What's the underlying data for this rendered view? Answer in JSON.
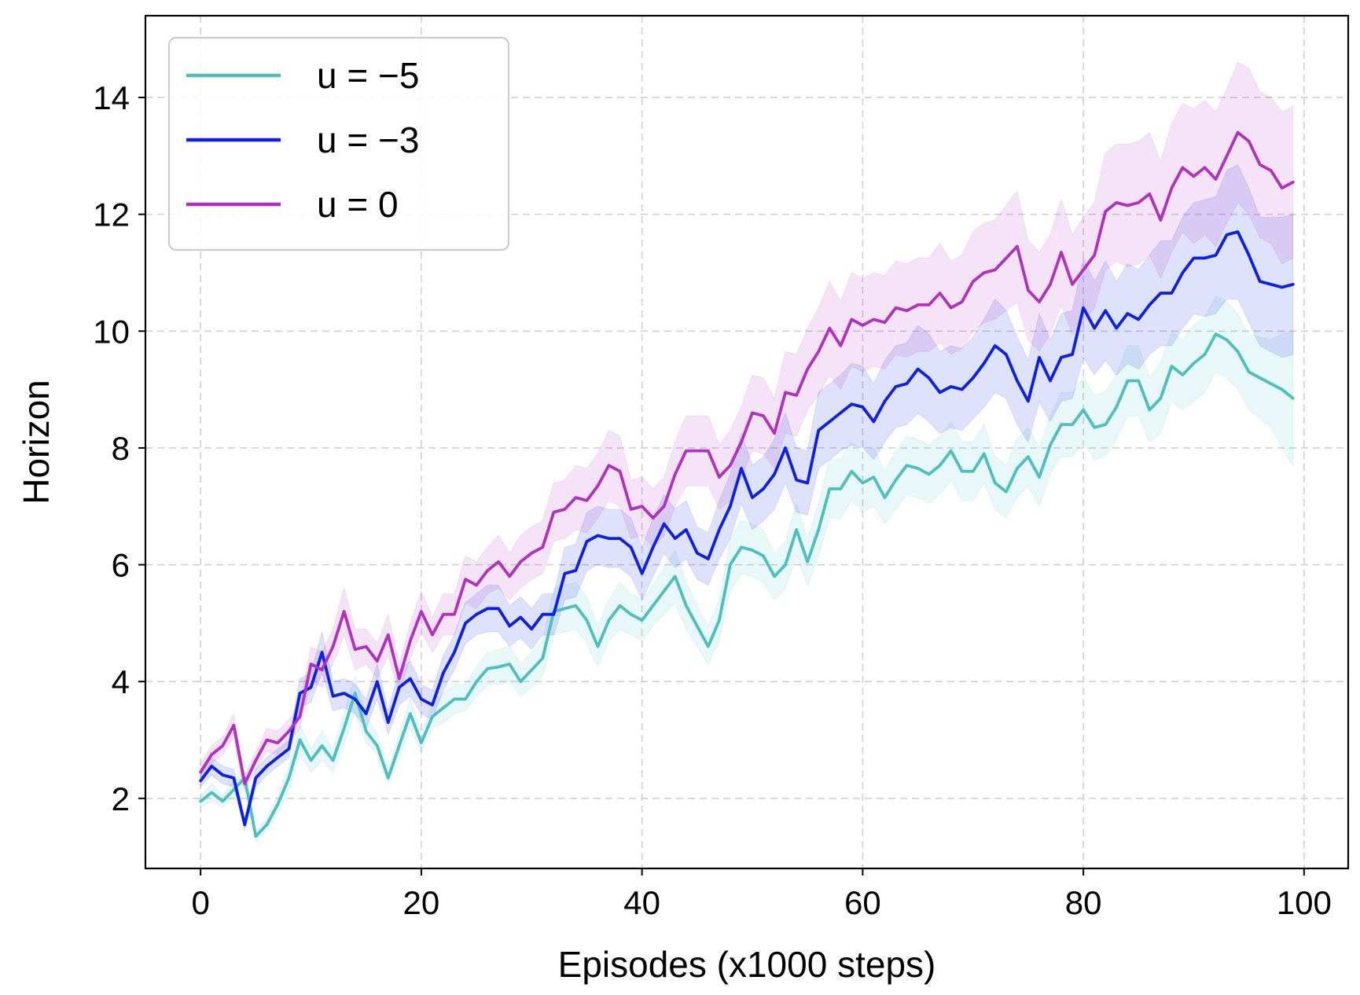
{
  "chart_data": {
    "type": "line",
    "title": "",
    "xlabel": "Episodes (x1000 steps)",
    "ylabel": "Horizon",
    "xlim": [
      -5,
      104
    ],
    "ylim": [
      0.8,
      15.4
    ],
    "xticks": [
      0,
      20,
      40,
      60,
      80,
      100
    ],
    "yticks": [
      2,
      4,
      6,
      8,
      10,
      12,
      14
    ],
    "grid": true,
    "legend_position": "top-left",
    "x": [
      0,
      1,
      2,
      3,
      4,
      5,
      6,
      7,
      8,
      9,
      10,
      11,
      12,
      13,
      14,
      15,
      16,
      17,
      18,
      19,
      20,
      21,
      22,
      23,
      24,
      25,
      26,
      27,
      28,
      29,
      30,
      31,
      32,
      33,
      34,
      35,
      36,
      37,
      38,
      39,
      40,
      41,
      42,
      43,
      44,
      45,
      46,
      47,
      48,
      49,
      50,
      51,
      52,
      53,
      54,
      55,
      56,
      57,
      58,
      59,
      60,
      61,
      62,
      63,
      64,
      65,
      66,
      67,
      68,
      69,
      70,
      71,
      72,
      73,
      74,
      75,
      76,
      77,
      78,
      79,
      80,
      81,
      82,
      83,
      84,
      85,
      86,
      87,
      88,
      89,
      90,
      91,
      92,
      93,
      94,
      95,
      96,
      97,
      98,
      99
    ],
    "series": [
      {
        "name": "u = −5",
        "color": "#4dbfbf",
        "values": [
          1.95,
          2.1,
          1.95,
          2.15,
          2.35,
          1.35,
          1.55,
          1.9,
          2.35,
          3.0,
          2.65,
          2.9,
          2.65,
          3.2,
          3.8,
          3.15,
          2.9,
          2.35,
          2.9,
          3.45,
          2.95,
          3.4,
          3.55,
          3.7,
          3.7,
          4.0,
          4.22,
          4.25,
          4.3,
          4.0,
          4.2,
          4.4,
          5.2,
          5.25,
          5.3,
          5.05,
          4.6,
          5.05,
          5.3,
          5.15,
          5.05,
          5.3,
          5.55,
          5.8,
          5.3,
          4.95,
          4.6,
          5.05,
          6.0,
          6.3,
          6.25,
          6.15,
          5.8,
          6.0,
          6.6,
          6.05,
          6.6,
          7.3,
          7.3,
          7.6,
          7.4,
          7.5,
          7.15,
          7.45,
          7.7,
          7.65,
          7.55,
          7.7,
          7.95,
          7.6,
          7.6,
          7.9,
          7.4,
          7.25,
          7.65,
          7.85,
          7.5,
          8.05,
          8.4,
          8.4,
          8.65,
          8.35,
          8.4,
          8.7,
          9.15,
          9.15,
          8.65,
          8.85,
          9.4,
          9.25,
          9.45,
          9.6,
          9.95,
          9.85,
          9.65,
          9.3,
          9.2,
          9.1,
          9.0,
          8.85
        ],
        "band_lower": [
          1.85,
          1.95,
          1.85,
          2.0,
          2.2,
          1.25,
          1.45,
          1.75,
          2.15,
          2.75,
          2.45,
          2.65,
          2.45,
          2.95,
          3.45,
          2.95,
          2.75,
          2.25,
          2.7,
          3.2,
          2.8,
          3.2,
          3.3,
          3.45,
          3.5,
          3.75,
          3.95,
          3.95,
          4.0,
          3.75,
          3.9,
          4.1,
          4.8,
          4.85,
          4.9,
          4.65,
          4.25,
          4.7,
          4.9,
          4.8,
          4.7,
          4.95,
          5.15,
          5.35,
          4.9,
          4.6,
          4.3,
          4.7,
          5.55,
          5.85,
          5.8,
          5.7,
          5.4,
          5.6,
          6.15,
          5.65,
          6.15,
          6.8,
          6.8,
          7.1,
          6.9,
          7.0,
          6.7,
          6.95,
          7.2,
          7.15,
          7.05,
          7.2,
          7.45,
          7.1,
          7.1,
          7.4,
          6.95,
          6.8,
          7.15,
          7.35,
          7.0,
          7.55,
          7.85,
          7.85,
          8.1,
          7.8,
          7.85,
          8.15,
          8.55,
          8.55,
          8.1,
          8.25,
          8.8,
          8.65,
          8.8,
          8.95,
          9.3,
          9.2,
          9.0,
          8.65,
          8.5,
          8.35,
          8.0,
          7.7
        ],
        "band_upper": [
          2.05,
          2.25,
          2.05,
          2.3,
          2.5,
          1.45,
          1.65,
          2.05,
          2.55,
          3.25,
          2.85,
          3.15,
          2.85,
          3.45,
          4.1,
          3.4,
          3.1,
          2.5,
          3.1,
          3.7,
          3.15,
          3.6,
          3.8,
          3.95,
          3.95,
          4.25,
          4.5,
          4.55,
          4.6,
          4.3,
          4.5,
          4.7,
          5.6,
          5.65,
          5.7,
          5.45,
          4.95,
          5.4,
          5.7,
          5.5,
          5.4,
          5.65,
          5.95,
          6.25,
          5.7,
          5.3,
          4.95,
          5.4,
          6.45,
          6.75,
          6.7,
          6.6,
          6.2,
          6.4,
          7.05,
          6.45,
          7.05,
          7.8,
          7.8,
          8.1,
          7.9,
          8.0,
          7.6,
          7.95,
          8.2,
          8.15,
          8.05,
          8.2,
          8.45,
          8.1,
          8.1,
          8.4,
          7.85,
          7.7,
          8.15,
          8.35,
          8.0,
          8.55,
          8.95,
          8.95,
          9.2,
          8.9,
          8.95,
          9.25,
          9.75,
          9.75,
          9.2,
          9.45,
          10.0,
          9.85,
          10.1,
          10.25,
          10.6,
          10.5,
          10.3,
          9.95,
          9.9,
          9.85,
          9.95,
          10.0
        ]
      },
      {
        "name": "u = −3",
        "color": "#0a1fe8",
        "values": [
          2.3,
          2.55,
          2.4,
          2.35,
          1.55,
          2.35,
          2.55,
          2.7,
          2.85,
          3.8,
          3.9,
          4.5,
          3.75,
          3.8,
          3.7,
          3.45,
          4.0,
          3.3,
          3.9,
          4.05,
          3.7,
          3.6,
          4.15,
          4.5,
          5.0,
          5.15,
          5.25,
          5.25,
          4.95,
          5.1,
          4.9,
          5.15,
          5.15,
          5.85,
          5.9,
          6.4,
          6.5,
          6.45,
          6.45,
          6.3,
          5.85,
          6.3,
          6.7,
          6.45,
          6.6,
          6.2,
          6.1,
          6.6,
          7.0,
          7.65,
          7.15,
          7.3,
          7.55,
          8.0,
          7.45,
          7.4,
          8.3,
          8.45,
          8.6,
          8.75,
          8.7,
          8.45,
          8.8,
          9.05,
          9.1,
          9.35,
          9.2,
          8.95,
          9.05,
          9.0,
          9.2,
          9.45,
          9.75,
          9.6,
          9.15,
          8.8,
          9.55,
          9.15,
          9.55,
          9.6,
          10.4,
          10.05,
          10.35,
          10.05,
          10.3,
          10.2,
          10.45,
          10.65,
          10.65,
          11.0,
          11.25,
          11.25,
          11.3,
          11.65,
          11.7,
          11.3,
          10.85,
          10.8,
          10.75,
          10.8
        ],
        "band_lower": [
          2.2,
          2.4,
          2.25,
          2.2,
          1.45,
          2.2,
          2.4,
          2.55,
          2.7,
          3.55,
          3.65,
          4.15,
          3.5,
          3.55,
          3.45,
          3.2,
          3.7,
          3.1,
          3.6,
          3.75,
          3.45,
          3.35,
          3.85,
          4.2,
          4.65,
          4.8,
          4.85,
          4.85,
          4.6,
          4.75,
          4.55,
          4.8,
          4.8,
          5.4,
          5.45,
          5.9,
          6.0,
          5.95,
          5.95,
          5.8,
          5.4,
          5.8,
          6.2,
          5.95,
          6.1,
          5.75,
          5.65,
          6.1,
          6.45,
          7.05,
          6.6,
          6.75,
          6.95,
          7.4,
          6.9,
          6.85,
          7.65,
          7.8,
          7.95,
          8.05,
          8.0,
          7.8,
          8.1,
          8.35,
          8.4,
          8.6,
          8.45,
          8.25,
          8.35,
          8.3,
          8.5,
          8.7,
          8.95,
          8.85,
          8.4,
          8.1,
          8.8,
          8.45,
          8.8,
          8.85,
          9.55,
          9.25,
          9.5,
          9.25,
          9.45,
          9.35,
          9.6,
          9.75,
          9.75,
          10.05,
          10.3,
          10.25,
          10.3,
          10.55,
          10.55,
          10.15,
          9.75,
          9.65,
          9.55,
          9.6
        ],
        "band_upper": [
          2.4,
          2.7,
          2.55,
          2.5,
          1.65,
          2.5,
          2.7,
          2.85,
          3.0,
          4.05,
          4.15,
          4.85,
          4.0,
          4.05,
          3.95,
          3.7,
          4.3,
          3.5,
          4.2,
          4.35,
          3.95,
          3.85,
          4.45,
          4.8,
          5.35,
          5.5,
          5.65,
          5.65,
          5.3,
          5.45,
          5.25,
          5.5,
          5.5,
          6.3,
          6.35,
          6.9,
          7.0,
          6.95,
          6.95,
          6.8,
          6.3,
          6.8,
          7.2,
          6.95,
          7.1,
          6.65,
          6.55,
          7.1,
          7.55,
          8.25,
          7.7,
          7.85,
          8.15,
          8.6,
          8.0,
          7.95,
          8.95,
          9.1,
          9.25,
          9.45,
          9.4,
          9.1,
          9.5,
          9.75,
          9.8,
          10.1,
          9.95,
          9.65,
          9.75,
          9.7,
          9.9,
          10.2,
          10.55,
          10.35,
          9.9,
          9.5,
          10.3,
          9.85,
          10.3,
          10.35,
          11.25,
          10.85,
          11.2,
          10.85,
          11.15,
          11.05,
          11.3,
          11.55,
          11.55,
          11.95,
          12.2,
          12.25,
          12.3,
          12.75,
          12.85,
          12.45,
          11.95,
          11.95,
          11.95,
          12.0
        ]
      },
      {
        "name": "u = 0",
        "color": "#b030c0",
        "values": [
          2.45,
          2.75,
          2.9,
          3.25,
          2.25,
          2.65,
          3.0,
          2.95,
          3.15,
          3.4,
          4.3,
          4.2,
          4.6,
          5.2,
          4.55,
          4.6,
          4.35,
          4.8,
          4.05,
          4.7,
          5.2,
          4.8,
          5.15,
          5.15,
          5.75,
          5.65,
          5.9,
          6.05,
          5.8,
          6.05,
          6.2,
          6.3,
          6.9,
          6.95,
          7.15,
          7.1,
          7.35,
          7.7,
          7.6,
          6.95,
          7.0,
          6.8,
          7.0,
          7.55,
          7.95,
          7.95,
          7.95,
          7.5,
          7.7,
          8.1,
          8.6,
          8.55,
          8.25,
          8.95,
          8.9,
          9.35,
          9.65,
          10.05,
          9.75,
          10.2,
          10.1,
          10.2,
          10.15,
          10.4,
          10.35,
          10.45,
          10.45,
          10.65,
          10.4,
          10.5,
          10.85,
          11.0,
          11.05,
          11.25,
          11.45,
          10.7,
          10.5,
          10.8,
          11.35,
          10.8,
          11.05,
          11.3,
          12.05,
          12.2,
          12.15,
          12.2,
          12.35,
          11.9,
          12.45,
          12.8,
          12.65,
          12.8,
          12.6,
          13.0,
          13.4,
          13.25,
          12.85,
          12.75,
          12.45,
          12.55
        ],
        "band_lower": [
          2.3,
          2.6,
          2.75,
          3.05,
          2.1,
          2.5,
          2.8,
          2.75,
          2.95,
          3.2,
          4.0,
          3.9,
          4.3,
          4.8,
          4.2,
          4.3,
          4.05,
          4.45,
          3.8,
          4.4,
          4.85,
          4.5,
          4.8,
          4.8,
          5.35,
          5.25,
          5.5,
          5.6,
          5.4,
          5.6,
          5.75,
          5.85,
          6.4,
          6.45,
          6.6,
          6.55,
          6.8,
          7.1,
          7.0,
          6.45,
          6.5,
          6.3,
          6.5,
          7.0,
          7.35,
          7.35,
          7.35,
          6.95,
          7.1,
          7.5,
          7.95,
          7.9,
          7.65,
          8.25,
          8.2,
          8.65,
          8.9,
          9.25,
          9.0,
          9.4,
          9.3,
          9.4,
          9.35,
          9.6,
          9.55,
          9.65,
          9.65,
          9.8,
          9.6,
          9.7,
          10.0,
          10.15,
          10.2,
          10.35,
          10.5,
          9.85,
          9.65,
          9.95,
          10.45,
          9.95,
          10.15,
          10.4,
          11.05,
          11.2,
          11.1,
          11.15,
          11.3,
          10.9,
          11.35,
          11.7,
          11.5,
          11.65,
          11.45,
          11.85,
          12.2,
          12.0,
          11.6,
          11.5,
          11.15,
          11.25
        ],
        "band_upper": [
          2.6,
          2.9,
          3.05,
          3.45,
          2.4,
          2.8,
          3.2,
          3.15,
          3.35,
          3.6,
          4.6,
          4.5,
          4.9,
          5.6,
          4.9,
          4.9,
          4.65,
          5.15,
          4.3,
          5.0,
          5.55,
          5.1,
          5.5,
          5.5,
          6.15,
          6.05,
          6.3,
          6.5,
          6.2,
          6.5,
          6.65,
          6.75,
          7.4,
          7.45,
          7.7,
          7.65,
          7.9,
          8.3,
          8.2,
          7.45,
          7.5,
          7.3,
          7.5,
          8.1,
          8.55,
          8.55,
          8.55,
          8.05,
          8.3,
          8.7,
          9.25,
          9.2,
          8.85,
          9.65,
          9.6,
          10.05,
          10.4,
          10.85,
          10.5,
          11.0,
          10.9,
          11.0,
          10.95,
          11.2,
          11.15,
          11.25,
          11.25,
          11.5,
          11.2,
          11.3,
          11.7,
          11.85,
          11.9,
          12.15,
          12.4,
          11.55,
          11.35,
          11.65,
          12.25,
          11.65,
          11.95,
          12.2,
          13.05,
          13.2,
          13.2,
          13.25,
          13.4,
          12.9,
          13.55,
          13.9,
          13.8,
          13.95,
          13.75,
          14.15,
          14.6,
          14.5,
          14.1,
          14.0,
          13.75,
          13.85
        ]
      }
    ]
  }
}
